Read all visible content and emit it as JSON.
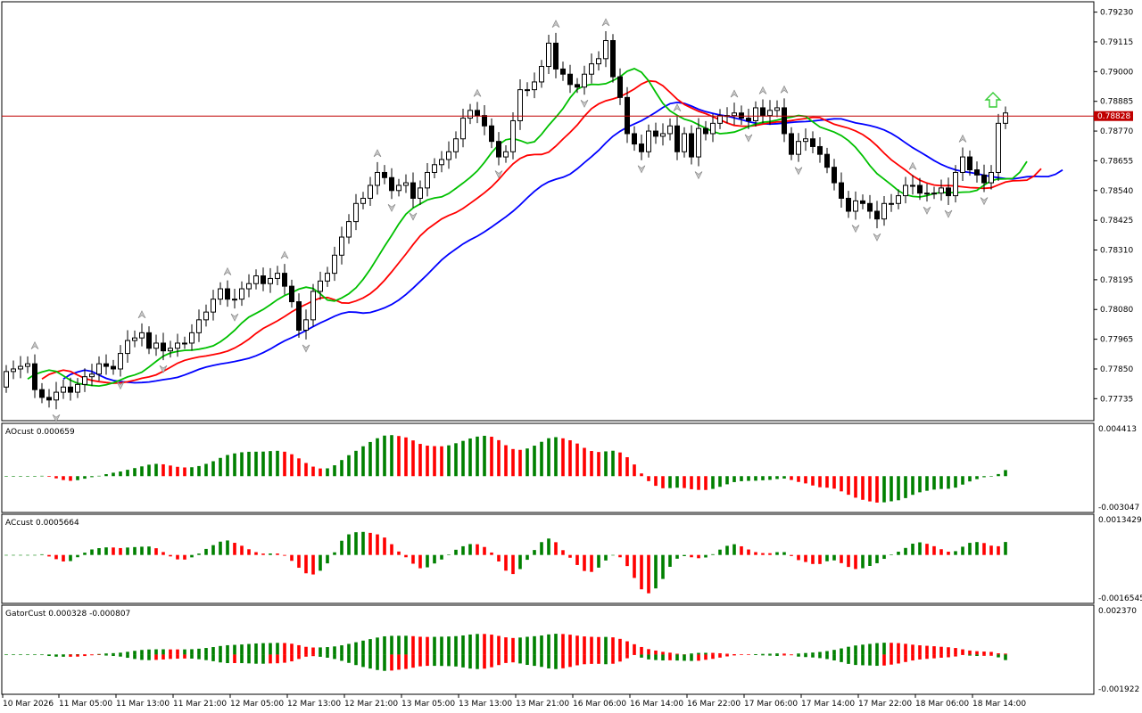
{
  "chart_data": [
    {
      "type": "candlestick",
      "panel": "price",
      "price_levels": [
        "0.79230",
        "0.79115",
        "0.79000",
        "0.78885",
        "0.78770",
        "0.78655",
        "0.78540",
        "0.78425",
        "0.78310",
        "0.78195",
        "0.78080",
        "0.77965",
        "0.77850",
        "0.77735"
      ],
      "ylim": [
        0.7765,
        0.7927
      ],
      "current_price": "0.78828",
      "current_price_value": 0.78828,
      "x_labels": [
        "10 Mar 2026",
        "11 Mar 05:00",
        "11 Mar 13:00",
        "11 Mar 21:00",
        "12 Mar 05:00",
        "12 Mar 13:00",
        "12 Mar 21:00",
        "13 Mar 05:00",
        "13 Mar 13:00",
        "13 Mar 21:00",
        "16 Mar 06:00",
        "16 Mar 14:00",
        "16 Mar 22:00",
        "17 Mar 06:00",
        "17 Mar 14:00",
        "17 Mar 22:00",
        "18 Mar 06:00",
        "18 Mar 14:00"
      ],
      "close": [
        0.7784,
        0.7785,
        0.7786,
        0.7787,
        0.7777,
        0.7774,
        0.7773,
        0.7776,
        0.7778,
        0.7776,
        0.7779,
        0.7782,
        0.7783,
        0.7787,
        0.7786,
        0.7785,
        0.7791,
        0.7796,
        0.7797,
        0.7799,
        0.7793,
        0.7795,
        0.7792,
        0.7793,
        0.7795,
        0.7795,
        0.7799,
        0.7804,
        0.7807,
        0.7812,
        0.7816,
        0.7812,
        0.7812,
        0.7816,
        0.7818,
        0.7821,
        0.7818,
        0.782,
        0.7822,
        0.7817,
        0.7811,
        0.78,
        0.7804,
        0.7815,
        0.7819,
        0.7822,
        0.7829,
        0.7836,
        0.7842,
        0.7849,
        0.7851,
        0.7856,
        0.7861,
        0.7859,
        0.7854,
        0.7856,
        0.7857,
        0.7851,
        0.7855,
        0.7861,
        0.7864,
        0.7866,
        0.7869,
        0.7874,
        0.7882,
        0.7885,
        0.7883,
        0.7879,
        0.7873,
        0.7867,
        0.7869,
        0.7881,
        0.7893,
        0.7893,
        0.7896,
        0.7902,
        0.7911,
        0.7901,
        0.7899,
        0.7895,
        0.7894,
        0.7899,
        0.7903,
        0.7905,
        0.7912,
        0.7898,
        0.789,
        0.7876,
        0.7872,
        0.7869,
        0.7877,
        0.7875,
        0.7876,
        0.7879,
        0.7869,
        0.7876,
        0.7867,
        0.7878,
        0.7876,
        0.788,
        0.7883,
        0.7883,
        0.7884,
        0.7882,
        0.7881,
        0.7886,
        0.7883,
        0.7885,
        0.7886,
        0.7876,
        0.7868,
        0.7873,
        0.7874,
        0.7871,
        0.7868,
        0.7863,
        0.7857,
        0.7851,
        0.7846,
        0.785,
        0.7849,
        0.7846,
        0.7843,
        0.7849,
        0.7849,
        0.7852,
        0.7856,
        0.7856,
        0.7853,
        0.7853,
        0.7853,
        0.7855,
        0.7852,
        0.7861,
        0.7867,
        0.7862,
        0.786,
        0.7857,
        0.7861,
        0.788,
        0.7884
      ],
      "alligator": [
        {
          "color": "#0000ff"
        },
        {
          "color": "#ff0000"
        },
        {
          "color": "#00c000"
        }
      ]
    },
    {
      "type": "bar",
      "panel": "AO",
      "title": "AOcust 0.000659",
      "axis_labels": [
        "0.004413",
        "-0.003047"
      ],
      "ylim": [
        -0.0031,
        0.0045
      ],
      "colors": {
        "up": "#008000",
        "down": "#ff0000"
      }
    },
    {
      "type": "bar",
      "panel": "AC",
      "title": "ACcust 0.0005664",
      "axis_labels": [
        "0.0013429",
        "-0.0016545"
      ],
      "ylim": [
        -0.00168,
        0.00137
      ],
      "colors": {
        "up": "#008000",
        "down": "#ff0000"
      }
    },
    {
      "type": "bar",
      "panel": "Gator",
      "title": "GatorCust 0.000328 -0.000807",
      "axis_labels": [
        "0.002370",
        "-0.001922"
      ],
      "ylim": [
        -0.00195,
        0.0024
      ],
      "colors": {
        "up": "#008000",
        "down": "#ff0000"
      }
    }
  ]
}
